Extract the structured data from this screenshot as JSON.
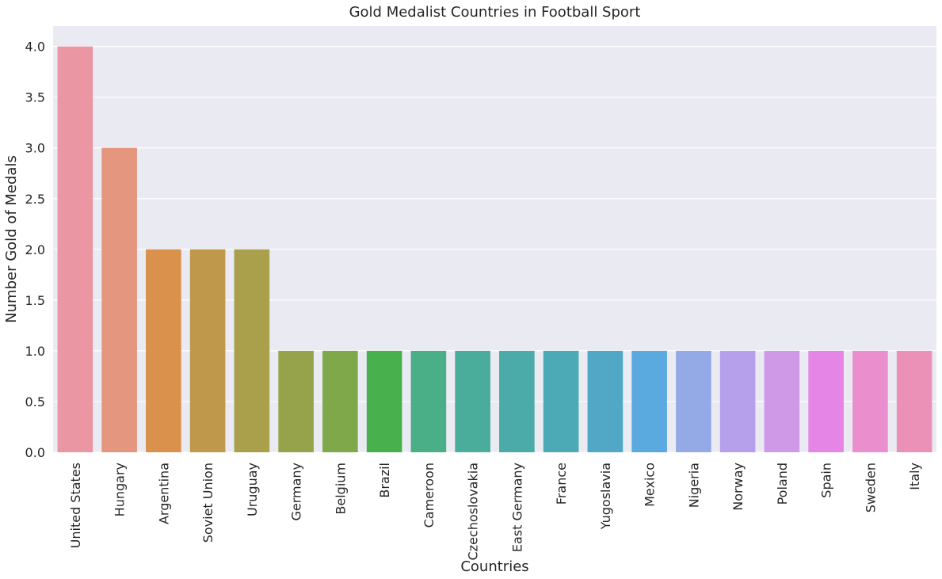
{
  "chart_data": {
    "type": "bar",
    "title": "Gold Medalist Countries in Football Sport",
    "xlabel": "Countries",
    "ylabel": "Number Gold of Medals",
    "ylim": [
      0,
      4.2
    ],
    "yticks": [
      "0.0",
      "0.5",
      "1.0",
      "1.5",
      "2.0",
      "2.5",
      "3.0",
      "3.5",
      "4.0"
    ],
    "grid": true,
    "categories": [
      "United States",
      "Hungary",
      "Argentina",
      "Soviet Union",
      "Uruguay",
      "Germany",
      "Belgium",
      "Brazil",
      "Cameroon",
      "Czechoslovakia",
      "East Germany",
      "France",
      "Yugoslavia",
      "Mexico",
      "Nigeria",
      "Norway",
      "Poland",
      "Spain",
      "Sweden",
      "Italy"
    ],
    "values": [
      4,
      3,
      2,
      2,
      2,
      1,
      1,
      1,
      1,
      1,
      1,
      1,
      1,
      1,
      1,
      1,
      1,
      1,
      1,
      1
    ],
    "colors": [
      "#ea96a3",
      "#e5967e",
      "#d9914c",
      "#c0984b",
      "#aa9f4a",
      "#97a34a",
      "#7fa84a",
      "#48b04c",
      "#4aaf87",
      "#4aac9b",
      "#4baba9",
      "#4caab6",
      "#50a8c6",
      "#5aaae0",
      "#94aae6",
      "#b6a0eb",
      "#cf99e7",
      "#e586e6",
      "#ea8ecd",
      "#eb90b6"
    ],
    "background": "#eaeaf2"
  }
}
